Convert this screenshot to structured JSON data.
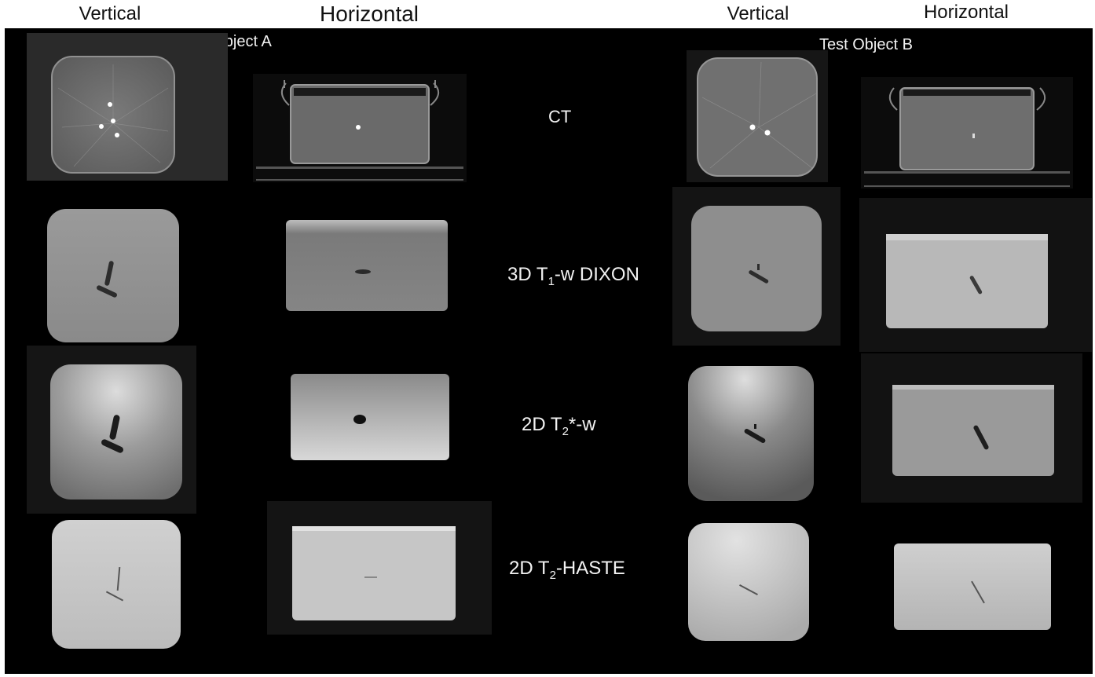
{
  "headers": {
    "a_vertical": "Vertical",
    "a_horizontal": "Horizontal",
    "b_vertical": "Vertical",
    "b_horizontal": "Horizontal"
  },
  "objects": {
    "a": "Test Object A",
    "b": "Test Object B"
  },
  "modalities": {
    "ct": "CT",
    "t1_prefix": "3D T",
    "t1_sub": "1",
    "t1_suffix": "-w DIXON",
    "t2star_prefix": "2D T",
    "t2star_sub": "2",
    "t2star_suffix": "*-w",
    "haste_prefix": "2D T",
    "haste_sub": "2",
    "haste_suffix": "-HASTE"
  }
}
